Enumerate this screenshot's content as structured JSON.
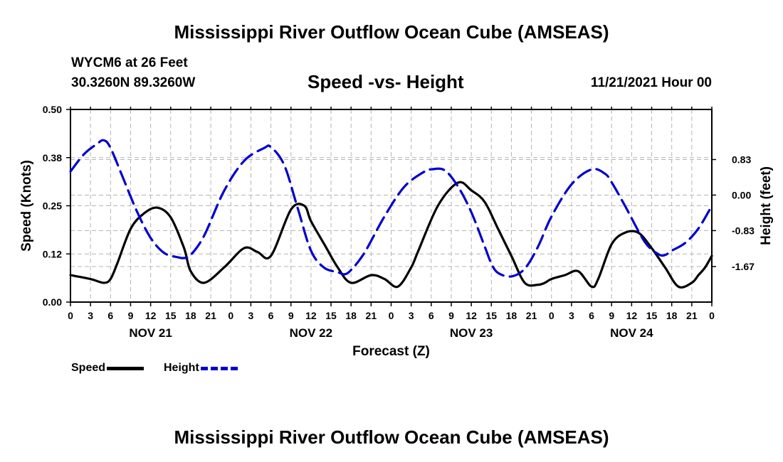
{
  "titles": {
    "main": "Mississippi River Outflow Ocean Cube (AMSEAS)",
    "repeat": "Mississippi River Outflow Ocean Cube (AMSEAS)"
  },
  "station": {
    "name_depth": "WYCM6 at 26 Feet",
    "coords": "30.3260N  89.3260W",
    "datetime": "11/21/2021 Hour 00"
  },
  "chart_data": {
    "type": "line",
    "title": "Speed -vs- Height",
    "xlabel": "Forecast (Z)",
    "ylabel_left": "Speed (Knots)",
    "ylabel_right": "Height (feet)",
    "x_hours_range": [
      0,
      96
    ],
    "x_tick_step_hours": 3,
    "x_tick_labels": [
      "0",
      "3",
      "6",
      "9",
      "12",
      "15",
      "18",
      "21",
      "0",
      "3",
      "6",
      "9",
      "12",
      "15",
      "18",
      "21",
      "0",
      "3",
      "6",
      "9",
      "12",
      "15",
      "18",
      "21",
      "0",
      "3",
      "6",
      "9",
      "12",
      "15",
      "18",
      "21",
      "0"
    ],
    "day_labels": [
      {
        "label": "NOV 21",
        "hour": 12
      },
      {
        "label": "NOV 22",
        "hour": 36
      },
      {
        "label": "NOV 23",
        "hour": 60
      },
      {
        "label": "NOV 24",
        "hour": 84
      }
    ],
    "ylim_left": [
      0,
      0.5
    ],
    "y_ticks_left": [
      0.0,
      0.125,
      0.25,
      0.375,
      0.5
    ],
    "y_tick_labels_left": [
      "0.00",
      "0.12",
      "0.25",
      "0.38",
      "0.50"
    ],
    "ylim_right": [
      -2.5,
      2.0
    ],
    "y_ticks_right": [
      0.83,
      0.0,
      -0.83,
      -1.67
    ],
    "y_tick_labels_right": [
      "0.83",
      "0.00",
      "-0.83",
      "-1.67"
    ],
    "grid": true,
    "legend_position": "bottom-left",
    "series": [
      {
        "name": "Speed",
        "axis": "left",
        "color": "#000000",
        "dash": "solid",
        "x": [
          0,
          3,
          5,
          6,
          7,
          9,
          11,
          13,
          15,
          17,
          18,
          20,
          23,
          26,
          28,
          30,
          33,
          35,
          36,
          38,
          40,
          42,
          45,
          47,
          49,
          51,
          52,
          55,
          58,
          60,
          62,
          64,
          66,
          68,
          70,
          71,
          72,
          74,
          76,
          78,
          79,
          81,
          83,
          85,
          87,
          89,
          91,
          93,
          94,
          95,
          96
        ],
        "values": [
          0.07,
          0.06,
          0.05,
          0.06,
          0.1,
          0.19,
          0.23,
          0.245,
          0.22,
          0.14,
          0.08,
          0.05,
          0.09,
          0.14,
          0.13,
          0.12,
          0.24,
          0.25,
          0.21,
          0.15,
          0.09,
          0.05,
          0.07,
          0.06,
          0.04,
          0.09,
          0.13,
          0.25,
          0.31,
          0.29,
          0.26,
          0.19,
          0.12,
          0.05,
          0.045,
          0.05,
          0.06,
          0.07,
          0.08,
          0.04,
          0.06,
          0.15,
          0.18,
          0.18,
          0.14,
          0.09,
          0.04,
          0.05,
          0.07,
          0.09,
          0.12
        ]
      },
      {
        "name": "Height",
        "axis": "right",
        "color": "#0000cc",
        "dash": "dashed",
        "x": [
          0,
          2,
          4,
          5,
          6,
          8,
          10,
          12,
          14,
          16,
          17,
          18,
          20,
          23,
          26,
          29,
          30,
          32,
          34,
          36,
          38,
          40,
          41,
          42,
          44,
          47,
          50,
          53,
          54,
          56,
          58,
          60,
          62,
          63,
          64,
          66,
          68,
          70,
          72,
          75,
          78,
          80,
          81,
          83,
          86,
          88,
          89,
          90,
          92,
          94,
          96
        ],
        "values": [
          0.55,
          0.95,
          1.2,
          1.28,
          1.1,
          0.35,
          -0.4,
          -1.0,
          -1.35,
          -1.45,
          -1.47,
          -1.4,
          -0.95,
          0.1,
          0.8,
          1.1,
          1.12,
          0.7,
          -0.3,
          -1.3,
          -1.7,
          -1.8,
          -1.85,
          -1.75,
          -1.35,
          -0.5,
          0.2,
          0.55,
          0.6,
          0.58,
          0.2,
          -0.4,
          -1.2,
          -1.6,
          -1.82,
          -1.9,
          -1.72,
          -1.2,
          -0.5,
          0.25,
          0.6,
          0.5,
          0.3,
          -0.25,
          -1.1,
          -1.38,
          -1.4,
          -1.3,
          -1.12,
          -0.78,
          -0.25
        ]
      }
    ]
  }
}
